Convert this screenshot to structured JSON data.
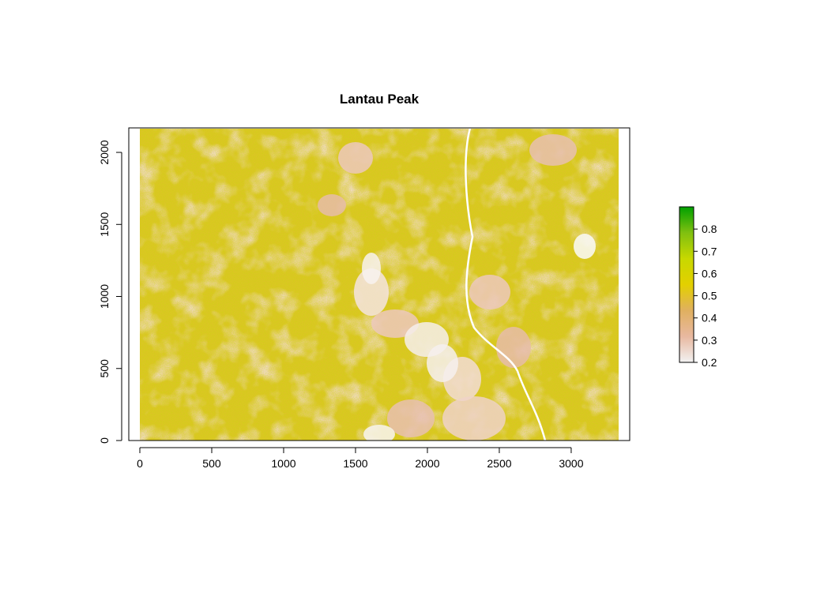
{
  "chart_data": {
    "type": "heatmap",
    "title": "Lantau Peak",
    "xlabel": "",
    "ylabel": "",
    "xlim": [
      0,
      3330
    ],
    "ylim": [
      0,
      2170
    ],
    "x_ticks": [
      "0",
      "500",
      "1000",
      "1500",
      "2000",
      "2500",
      "3000"
    ],
    "y_ticks": [
      "0",
      "500",
      "1000",
      "1500",
      "2000"
    ],
    "legend": {
      "placement": "right",
      "range": [
        0.2,
        0.9
      ],
      "ticks": [
        "0.2",
        "0.3",
        "0.4",
        "0.5",
        "0.6",
        "0.7",
        "0.8"
      ],
      "colors": [
        "#f2f2f2",
        "#e8b8a0",
        "#e0b060",
        "#e3d000",
        "#c8d800",
        "#80c010",
        "#00a000"
      ]
    },
    "grid": false
  }
}
